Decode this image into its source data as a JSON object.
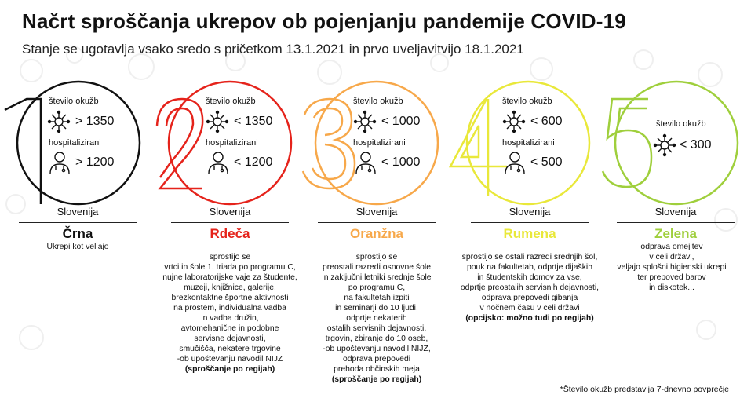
{
  "title": "Načrt sproščanja ukrepov ob pojenjanju pandemije COVID-19",
  "subtitle": "Stanje se ugotavlja vsako sredo s pričetkom 13.1.2021 in prvo uveljavitvijo 18.1.2021",
  "colors": {
    "black": "#111111",
    "red": "#e5231b",
    "orange": "#f7a84a",
    "yellow": "#e9e83a",
    "green": "#9fcf3c",
    "deco": "#eeeeee"
  },
  "stages": [
    {
      "number": "1",
      "infections_label": "število okužb",
      "infections_value": "> 1350",
      "hospital_label": "hospitalizirani",
      "hospital_value": "> 1200",
      "region": "Slovenija",
      "level": "Črna",
      "description": "Ukrepi kot veljajo",
      "note": ""
    },
    {
      "number": "2",
      "infections_label": "število okužb",
      "infections_value": "< 1350",
      "hospital_label": "hospitalizirani",
      "hospital_value": "< 1200",
      "region": "Slovenija",
      "level": "Rdeča",
      "description": "sprostijo se\nvrtci in šole 1. triada po programu C,\nnujne laboratorijske vaje za študente,\nmuzeji, knjižnice, galerije,\nbrezkontaktne športne aktivnosti\nna prostem, individualna vadba\nin vadba družin,\navtomehanične in podobne\nservisne dejavnosti,\nsmučišča, nekatere trgovine\n-ob upoštevanju navodil NIJZ",
      "note": "(sproščanje po regijah)"
    },
    {
      "number": "3",
      "infections_label": "število okužb",
      "infections_value": "< 1000",
      "hospital_label": "hospitalizirani",
      "hospital_value": "< 1000",
      "region": "Slovenija",
      "level": "Oranžna",
      "description": "sprostijo se\npreostali razredi osnovne šole\nin zaključni letniki srednje šole\npo programu C,\nna fakultetah izpiti\nin seminarji do 10 ljudi,\nodprtje nekaterih\nostalih servisnih dejavnosti,\ntrgovin, zbiranje do 10 oseb,\n-ob upoštevanju navodil NIJZ,\nodprava prepovedi\nprehoda občinskih meja",
      "note": "(sproščanje po regijah)"
    },
    {
      "number": "4",
      "infections_label": "število okužb",
      "infections_value": "< 600",
      "hospital_label": "hospitalizirani",
      "hospital_value": "< 500",
      "region": "Slovenija",
      "level": "Rumena",
      "description": "sprostijo se ostali razredi srednjih šol,\npouk na fakultetah, odprtje dijaških\nin študentskih domov za vse,\nodprtje preostalih servisnih dejavnosti,\nodprava prepovedi gibanja\nv nočnem času v celi državi",
      "note": "(opcijsko: možno tudi po regijah)"
    },
    {
      "number": "5",
      "infections_label": "število okužb",
      "infections_value": "< 300",
      "hospital_label": "",
      "hospital_value": "",
      "region": "Slovenija",
      "level": "Zelena",
      "description": "odprava omejitev\nv celi državi,\nveljajo splošni higienski ukrepi\nter prepoved barov\nin diskotek...",
      "note": ""
    }
  ],
  "icons": {
    "virus": "virus-icon",
    "doctor": "doctor-icon"
  },
  "footnote": "*Število okužb predstavlja 7-dnevno povprečje"
}
